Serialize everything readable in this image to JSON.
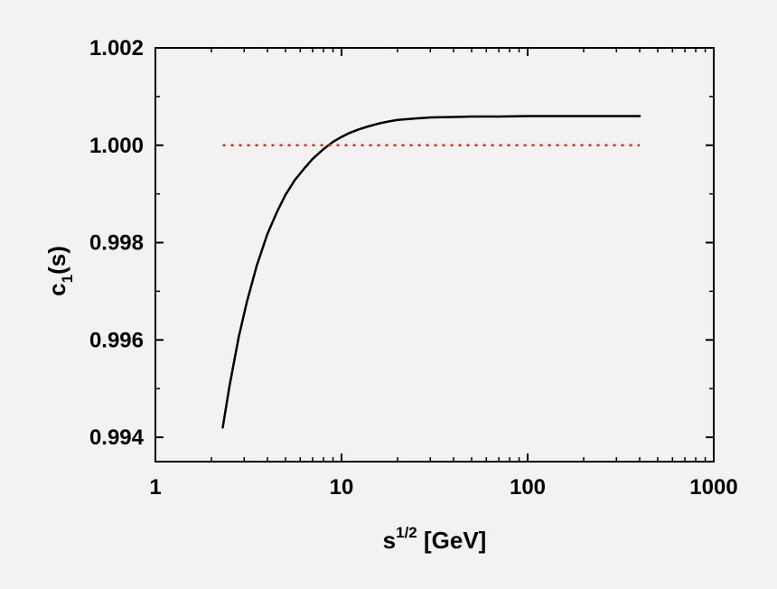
{
  "chart_data": {
    "type": "line",
    "xscale": "log",
    "xlim": [
      1,
      1000
    ],
    "ylim": [
      0.9935,
      1.002
    ],
    "x_ticks": [
      1,
      10,
      100,
      1000
    ],
    "x_tick_labels": [
      "1",
      "10",
      "100",
      "1000"
    ],
    "y_ticks": [
      0.994,
      0.996,
      0.998,
      1.0,
      1.002
    ],
    "y_tick_labels": [
      "0.994",
      "0.996",
      "0.998",
      "1.000",
      "1.002"
    ],
    "xlabel": {
      "base": "s",
      "sup": "1/2",
      "rest": " [GeV]"
    },
    "ylabel": {
      "base": "c",
      "sub": "1",
      "rest": "(s)"
    },
    "grid": false,
    "series": [
      {
        "style": "solid",
        "color": "#000000",
        "x": [
          2.3,
          2.5,
          2.8,
          3.1,
          3.5,
          4.0,
          4.5,
          5.0,
          5.6,
          6.3,
          7.0,
          8.0,
          9.0,
          10,
          11,
          12.5,
          14,
          16,
          18,
          20,
          25,
          30,
          40,
          50,
          70,
          100,
          150,
          200,
          300,
          400
        ],
        "y": [
          0.9942,
          0.99505,
          0.99605,
          0.99678,
          0.99752,
          0.99818,
          0.99863,
          0.99898,
          0.99928,
          0.99952,
          0.99972,
          0.99992,
          1.00007,
          1.00017,
          1.00025,
          1.00033,
          1.00039,
          1.00045,
          1.00049,
          1.00052,
          1.00055,
          1.00057,
          1.00058,
          1.00059,
          1.00059,
          1.0006,
          1.0006,
          1.0006,
          1.0006,
          1.0006
        ]
      },
      {
        "style": "dotted",
        "color": "#e8201a",
        "x": [
          2.3,
          400
        ],
        "y": [
          1.0,
          1.0
        ]
      }
    ]
  }
}
